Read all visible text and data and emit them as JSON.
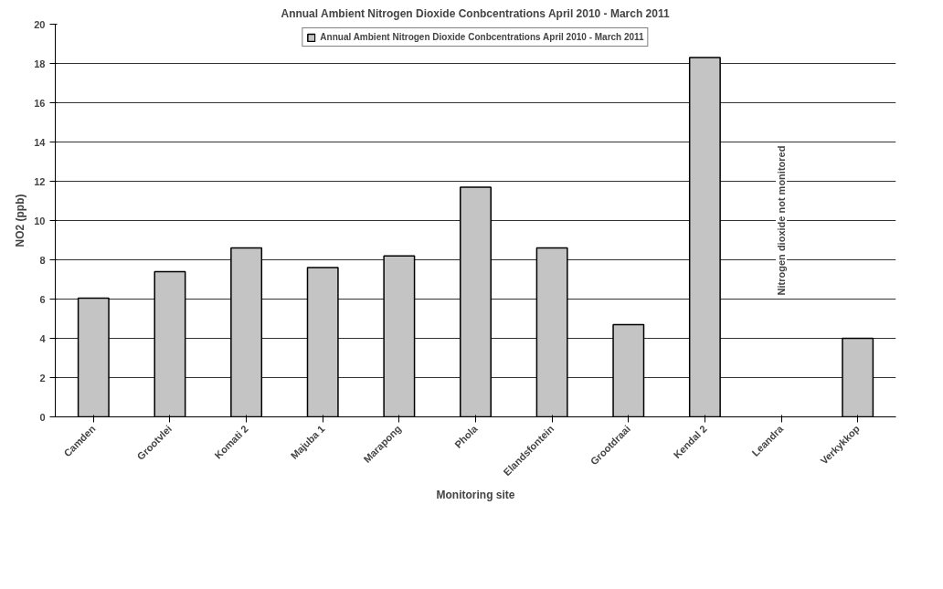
{
  "chart_data": {
    "type": "bar",
    "title": "Annual Ambient Nitrogen Dioxide Conbcentrations April 2010 - March 2011",
    "xlabel": "Monitoring site",
    "ylabel": "NO2 (ppb)",
    "categories": [
      "Camden",
      "Grootvlei",
      "Komati 2",
      "Majuba 1",
      "Marapong",
      "Phola",
      "Elandsfontein",
      "Grootdraai",
      "Kendal 2",
      "Leandra",
      "Verkykkop"
    ],
    "series": [
      {
        "name": "Annual Ambient Nitrogen Dioxide Conbcentrations April 2010 - March 2011",
        "color": "#c4c4c4",
        "values": [
          6.05,
          7.4,
          8.6,
          7.6,
          8.2,
          11.7,
          8.6,
          4.7,
          18.3,
          null,
          4.0
        ]
      }
    ],
    "annotations": [
      "Nitrogen dioxide not monitored"
    ],
    "ylim": [
      0,
      20
    ],
    "yticks": [
      0,
      2,
      4,
      6,
      8,
      10,
      12,
      14,
      16,
      18,
      20
    ],
    "grid": "y",
    "legend": "top"
  }
}
